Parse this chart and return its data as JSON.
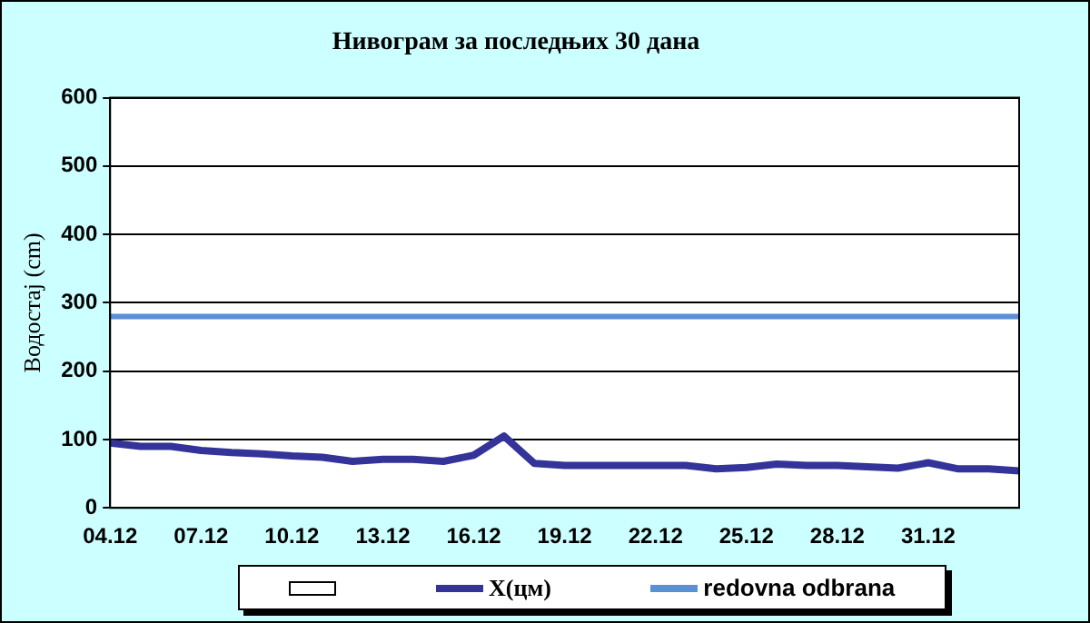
{
  "chart_data": {
    "type": "line",
    "title": "Нивограм за последњих 30 дана",
    "ylabel": "Водостај (cm)",
    "categories": [
      "04.12",
      null,
      null,
      "07.12",
      null,
      null,
      "10.12",
      null,
      null,
      "13.12",
      null,
      null,
      "16.12",
      null,
      null,
      "19.12",
      null,
      null,
      "22.12",
      null,
      null,
      "25.12",
      null,
      null,
      "28.12",
      null,
      null,
      "31.12",
      null,
      null,
      null
    ],
    "series": [
      {
        "name": "X(цм)",
        "color": "#333399",
        "values": [
          95,
          90,
          90,
          84,
          81,
          79,
          76,
          74,
          68,
          71,
          71,
          68,
          77,
          105,
          65,
          62,
          62,
          62,
          62,
          62,
          57,
          59,
          64,
          62,
          62,
          60,
          58,
          66,
          57,
          57,
          54
        ]
      }
    ],
    "ref_lines": [
      {
        "axis": "y",
        "value": 280,
        "label": "redovna odbrana",
        "color": "#5b8fd6"
      }
    ],
    "ylim": [
      0,
      600
    ],
    "yticks": [
      0,
      100,
      200,
      300,
      400,
      500,
      600
    ],
    "grid": "y",
    "legend": "bottom",
    "marker": "none",
    "line_style": "solid"
  }
}
